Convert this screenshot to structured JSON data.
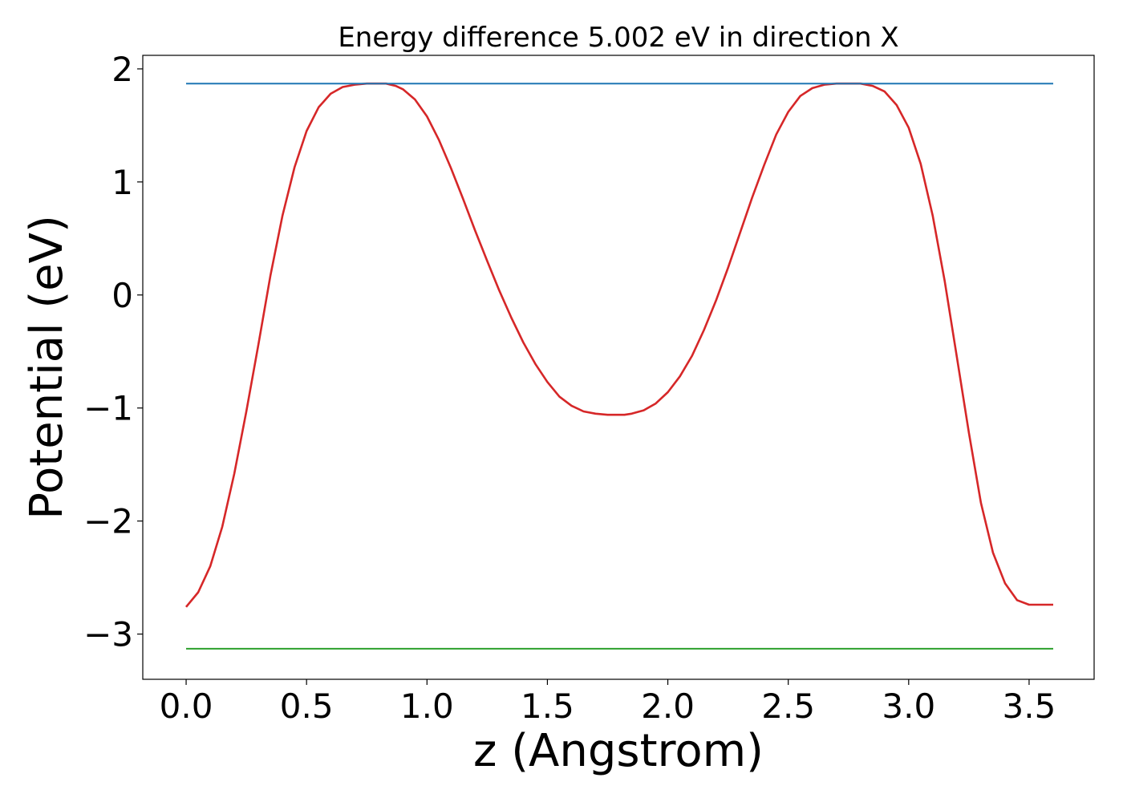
{
  "chart_data": {
    "type": "line",
    "title": "Energy difference 5.002 eV in direction X",
    "xlabel": "z (Angstrom)",
    "ylabel": "Potential (eV)",
    "xlim": [
      -0.18,
      3.77
    ],
    "ylim": [
      -3.4,
      2.12
    ],
    "xticks": [
      0.0,
      0.5,
      1.0,
      1.5,
      2.0,
      2.5,
      3.0,
      3.5
    ],
    "xtick_labels": [
      "0.0",
      "0.5",
      "1.0",
      "1.5",
      "2.0",
      "2.5",
      "3.0",
      "3.5"
    ],
    "yticks": [
      2,
      1,
      0,
      -1,
      -2,
      -3
    ],
    "ytick_labels": [
      "2",
      "1",
      "0",
      "−1",
      "−2",
      "−3"
    ],
    "grid": false,
    "series": [
      {
        "color": "#d62728",
        "x": [
          0.0,
          0.05,
          0.1,
          0.15,
          0.2,
          0.25,
          0.3,
          0.35,
          0.4,
          0.45,
          0.5,
          0.55,
          0.6,
          0.65,
          0.7,
          0.75,
          0.8,
          0.83,
          0.87,
          0.9,
          0.95,
          1.0,
          1.05,
          1.1,
          1.15,
          1.2,
          1.25,
          1.3,
          1.35,
          1.4,
          1.45,
          1.5,
          1.55,
          1.6,
          1.65,
          1.7,
          1.75,
          1.8,
          1.82,
          1.85,
          1.9,
          1.95,
          2.0,
          2.05,
          2.1,
          2.15,
          2.2,
          2.25,
          2.3,
          2.35,
          2.4,
          2.45,
          2.5,
          2.55,
          2.6,
          2.65,
          2.7,
          2.75,
          2.8,
          2.85,
          2.9,
          2.95,
          3.0,
          3.05,
          3.1,
          3.15,
          3.2,
          3.25,
          3.3,
          3.35,
          3.4,
          3.45,
          3.5,
          3.55,
          3.6
        ],
        "y": [
          -2.76,
          -2.63,
          -2.4,
          -2.05,
          -1.58,
          -1.03,
          -0.44,
          0.17,
          0.7,
          1.13,
          1.45,
          1.66,
          1.78,
          1.84,
          1.86,
          1.87,
          1.87,
          1.87,
          1.85,
          1.82,
          1.73,
          1.58,
          1.37,
          1.12,
          0.85,
          0.57,
          0.3,
          0.04,
          -0.2,
          -0.42,
          -0.61,
          -0.77,
          -0.9,
          -0.98,
          -1.03,
          -1.05,
          -1.06,
          -1.06,
          -1.06,
          -1.05,
          -1.02,
          -0.96,
          -0.86,
          -0.72,
          -0.54,
          -0.31,
          -0.05,
          0.24,
          0.55,
          0.86,
          1.15,
          1.42,
          1.62,
          1.76,
          1.83,
          1.86,
          1.87,
          1.87,
          1.87,
          1.85,
          1.8,
          1.68,
          1.48,
          1.16,
          0.7,
          0.12,
          -0.55,
          -1.22,
          -1.84,
          -2.28,
          -2.55,
          -2.7,
          -2.74,
          -2.74,
          -2.74
        ]
      },
      {
        "color": "#1f77b4",
        "x": [
          0.0,
          3.6
        ],
        "y": [
          1.87,
          1.87
        ]
      },
      {
        "color": "#2ca02c",
        "x": [
          0.0,
          3.6
        ],
        "y": [
          -3.13,
          -3.13
        ]
      }
    ]
  }
}
